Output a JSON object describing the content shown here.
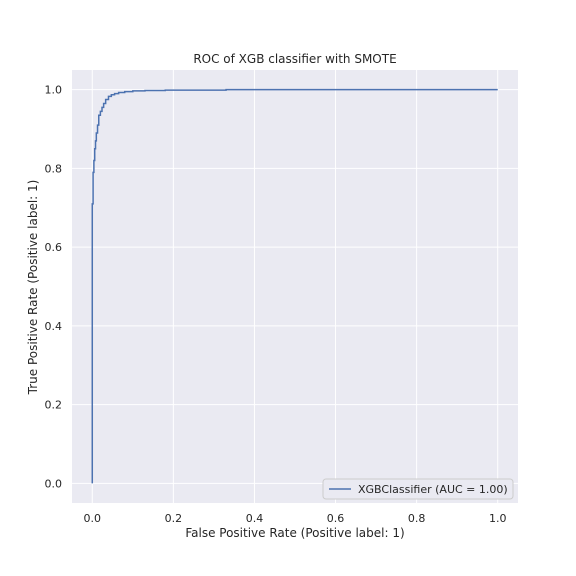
{
  "chart_data": {
    "type": "line",
    "title": "ROC of XGB classifier with SMOTE",
    "xlabel": "False Positive Rate (Positive label: 1)",
    "ylabel": "True Positive Rate (Positive label: 1)",
    "xlim": [
      -0.05,
      1.05
    ],
    "ylim": [
      -0.05,
      1.05
    ],
    "xticks": [
      "0.0",
      "0.2",
      "0.4",
      "0.6",
      "0.8",
      "1.0"
    ],
    "yticks": [
      "0.0",
      "0.2",
      "0.4",
      "0.6",
      "0.8",
      "1.0"
    ],
    "grid": true,
    "legend_position": "lower-right",
    "series": [
      {
        "name": "XGBClassifier (AUC = 1.00)",
        "color": "#4c72b0",
        "x": [
          0.0,
          0.0,
          0.002,
          0.002,
          0.004,
          0.004,
          0.006,
          0.006,
          0.008,
          0.008,
          0.01,
          0.01,
          0.013,
          0.013,
          0.016,
          0.016,
          0.02,
          0.02,
          0.024,
          0.024,
          0.028,
          0.028,
          0.033,
          0.033,
          0.04,
          0.04,
          0.047,
          0.047,
          0.055,
          0.055,
          0.065,
          0.065,
          0.08,
          0.08,
          0.1,
          0.1,
          0.13,
          0.13,
          0.18,
          0.18,
          0.33,
          0.33,
          1.0
        ],
        "y": [
          0.0,
          0.71,
          0.71,
          0.79,
          0.79,
          0.82,
          0.82,
          0.85,
          0.85,
          0.87,
          0.87,
          0.89,
          0.89,
          0.91,
          0.91,
          0.935,
          0.935,
          0.945,
          0.945,
          0.955,
          0.955,
          0.965,
          0.965,
          0.975,
          0.975,
          0.983,
          0.983,
          0.987,
          0.987,
          0.99,
          0.99,
          0.993,
          0.993,
          0.995,
          0.995,
          0.997,
          0.997,
          0.998,
          0.998,
          0.999,
          0.999,
          1.0,
          1.0
        ]
      }
    ]
  }
}
